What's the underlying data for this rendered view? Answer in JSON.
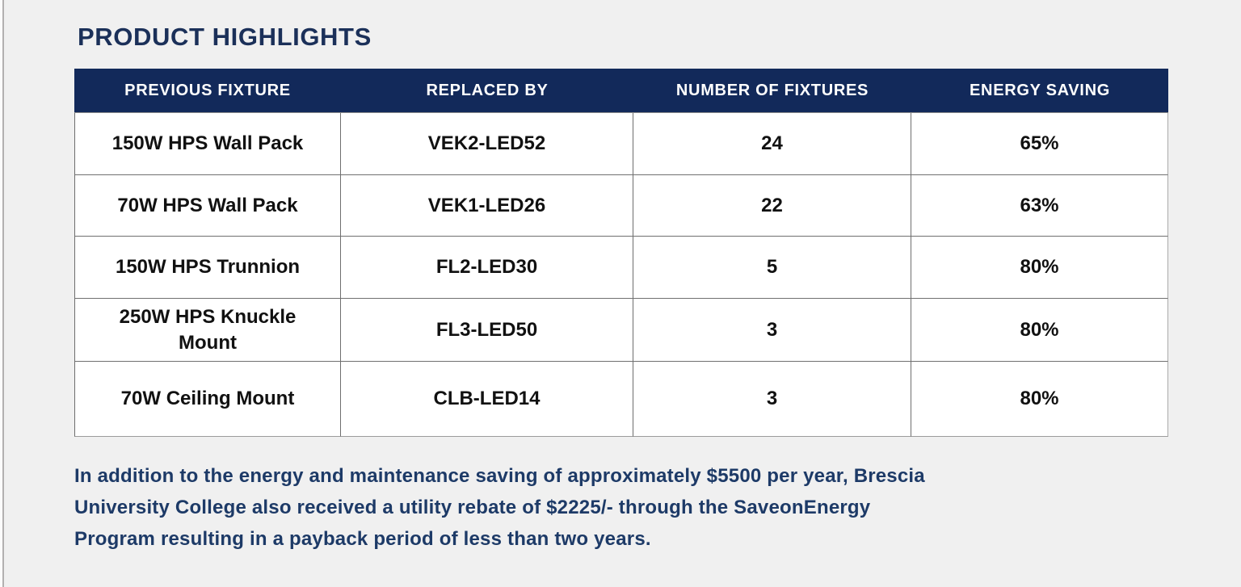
{
  "page": {
    "title": "PRODUCT HIGHLIGHTS"
  },
  "table": {
    "headers": [
      "PREVIOUS FIXTURE",
      "REPLACED BY",
      "NUMBER OF FIXTURES",
      "ENERGY SAVING"
    ],
    "rows": [
      {
        "previous_fixture": "150W HPS Wall Pack",
        "replaced_by": "VEK2-LED52",
        "number_of_fixtures": "24",
        "energy_saving": "65%"
      },
      {
        "previous_fixture": "70W HPS Wall Pack",
        "replaced_by": "VEK1-LED26",
        "number_of_fixtures": "22",
        "energy_saving": "63%"
      },
      {
        "previous_fixture": "150W HPS Trunnion",
        "replaced_by": "FL2-LED30",
        "number_of_fixtures": "5",
        "energy_saving": "80%"
      },
      {
        "previous_fixture": "250W HPS Knuckle Mount",
        "replaced_by": "FL3-LED50",
        "number_of_fixtures": "3",
        "energy_saving": "80%"
      },
      {
        "previous_fixture": "70W Ceiling Mount",
        "replaced_by": "CLB-LED14",
        "number_of_fixtures": "3",
        "energy_saving": "80%"
      }
    ]
  },
  "paragraph": {
    "lines": [
      "In addition to the energy and maintenance saving of approximately $5500 per year, Brescia",
      "University College also received a utility rebate of $2225/- through the SaveonEnergy",
      "Program resulting in a payback period of less than two years."
    ]
  },
  "colors": {
    "page_bg": "#f0f0f0",
    "header_bg": "#12295a",
    "title_text": "#1b3059",
    "paragraph_text": "#1d3a67",
    "cell_text": "#111111",
    "grid_line": "#6e6e6e",
    "page_edge_line": "#b2b0b0"
  }
}
